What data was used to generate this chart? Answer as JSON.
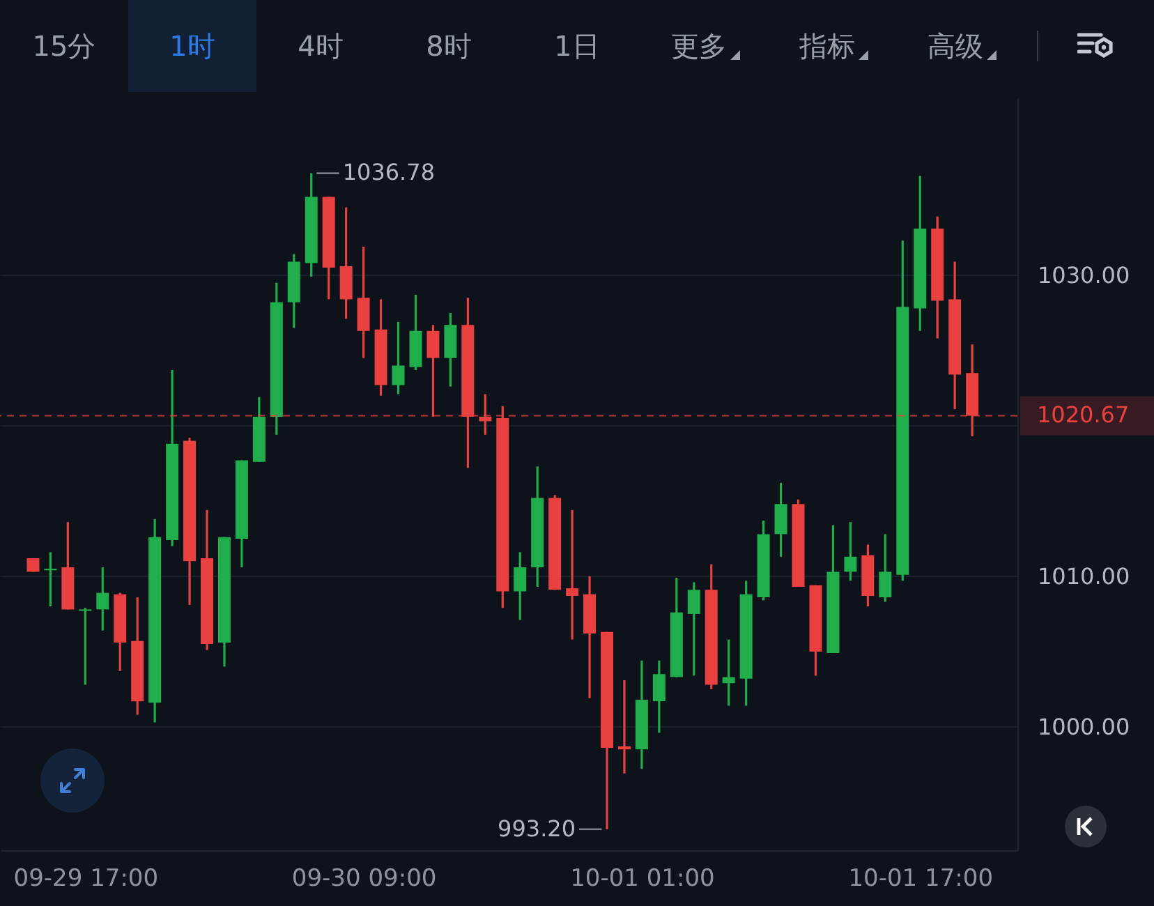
{
  "chart_data": {
    "type": "candlestick",
    "categories": [
      null,
      null,
      null,
      "09-29 17:00",
      null,
      null,
      null,
      null,
      null,
      null,
      null,
      null,
      null,
      null,
      null,
      null,
      null,
      null,
      null,
      "09-30 09:00",
      null,
      null,
      null,
      null,
      null,
      null,
      null,
      null,
      null,
      null,
      null,
      null,
      null,
      null,
      null,
      "10-01 01:00",
      null,
      null,
      null,
      null,
      null,
      null,
      null,
      null,
      null,
      null,
      null,
      null,
      null,
      null,
      null,
      "10-01 17:00",
      null,
      null,
      null
    ],
    "ohlc": [
      [
        1011.2,
        1011.2,
        1010.3,
        1010.3
      ],
      [
        1010.4,
        1011.6,
        1008.0,
        1010.5
      ],
      [
        1010.6,
        1013.6,
        1007.8,
        1007.8
      ],
      [
        1007.7,
        1007.9,
        1002.8,
        1007.8
      ],
      [
        1007.8,
        1010.6,
        1006.4,
        1008.9
      ],
      [
        1008.8,
        1008.9,
        1003.7,
        1005.6
      ],
      [
        1005.7,
        1008.6,
        1000.8,
        1001.7
      ],
      [
        1001.6,
        1013.8,
        1000.3,
        1012.6
      ],
      [
        1012.4,
        1023.7,
        1012.0,
        1018.8
      ],
      [
        1019.0,
        1019.2,
        1008.1,
        1011.0
      ],
      [
        1011.2,
        1014.4,
        1005.1,
        1005.5
      ],
      [
        1005.6,
        1012.6,
        1004.0,
        1012.6
      ],
      [
        1012.5,
        1017.7,
        1010.6,
        1017.7
      ],
      [
        1017.6,
        1021.9,
        1017.6,
        1020.6
      ],
      [
        1020.6,
        1029.5,
        1019.4,
        1028.2
      ],
      [
        1028.2,
        1031.4,
        1026.5,
        1030.9
      ],
      [
        1030.8,
        1036.78,
        1029.9,
        1035.2
      ],
      [
        1035.2,
        1035.2,
        1028.4,
        1030.5
      ],
      [
        1030.6,
        1034.5,
        1027.1,
        1028.4
      ],
      [
        1028.5,
        1031.9,
        1024.5,
        1026.3
      ],
      [
        1026.4,
        1028.4,
        1022.0,
        1022.7
      ],
      [
        1022.7,
        1026.9,
        1022.1,
        1024.0
      ],
      [
        1023.9,
        1028.7,
        1023.7,
        1026.3
      ],
      [
        1026.3,
        1026.7,
        1020.6,
        1024.5
      ],
      [
        1024.5,
        1027.5,
        1022.6,
        1026.7
      ],
      [
        1026.7,
        1028.5,
        1017.2,
        1020.6
      ],
      [
        1020.6,
        1022.1,
        1019.4,
        1020.3
      ],
      [
        1020.5,
        1021.3,
        1007.9,
        1009.0
      ],
      [
        1009.0,
        1011.6,
        1007.1,
        1010.6
      ],
      [
        1010.6,
        1017.3,
        1009.3,
        1015.2
      ],
      [
        1015.2,
        1015.4,
        1009.1,
        1009.1
      ],
      [
        1009.2,
        1014.4,
        1005.8,
        1008.7
      ],
      [
        1008.8,
        1010.0,
        1001.9,
        1006.2
      ],
      [
        1006.3,
        1006.3,
        993.2,
        998.6
      ],
      [
        998.7,
        1003.1,
        996.9,
        998.5
      ],
      [
        998.5,
        1004.4,
        997.2,
        1001.8
      ],
      [
        1001.7,
        1004.4,
        999.6,
        1003.5
      ],
      [
        1003.3,
        1009.9,
        1003.3,
        1007.6
      ],
      [
        1007.5,
        1009.6,
        1003.4,
        1009.1
      ],
      [
        1009.1,
        1010.8,
        1002.5,
        1002.8
      ],
      [
        1002.9,
        1005.8,
        1001.4,
        1003.3
      ],
      [
        1003.2,
        1009.7,
        1001.4,
        1008.8
      ],
      [
        1008.6,
        1013.7,
        1008.4,
        1012.8
      ],
      [
        1012.8,
        1016.2,
        1011.3,
        1014.8
      ],
      [
        1014.8,
        1015.1,
        1009.3,
        1009.3
      ],
      [
        1009.4,
        1009.4,
        1003.4,
        1005.0
      ],
      [
        1004.9,
        1013.4,
        1004.9,
        1010.3
      ],
      [
        1010.3,
        1013.6,
        1009.7,
        1011.3
      ],
      [
        1011.4,
        1012.1,
        1008.0,
        1008.7
      ],
      [
        1008.6,
        1012.8,
        1008.3,
        1010.3
      ],
      [
        1010.1,
        1032.3,
        1009.7,
        1027.9
      ],
      [
        1027.8,
        1036.6,
        1026.3,
        1033.1
      ],
      [
        1033.1,
        1033.9,
        1025.8,
        1028.3
      ],
      [
        1028.4,
        1030.9,
        1021.1,
        1023.4
      ],
      [
        1023.5,
        1025.4,
        1019.3,
        1020.67
      ]
    ],
    "colors": [
      "#e8413f",
      "#1fae4b",
      "#e8413f",
      "#1fae4b",
      "#1fae4b",
      "#e8413f",
      "#e8413f",
      "#1fae4b",
      "#1fae4b",
      "#e8413f",
      "#e8413f",
      "#1fae4b",
      "#1fae4b",
      "#1fae4b",
      "#1fae4b",
      "#1fae4b",
      "#1fae4b",
      "#e8413f",
      "#e8413f",
      "#e8413f",
      "#e8413f",
      "#1fae4b",
      "#1fae4b",
      "#e8413f",
      "#1fae4b",
      "#e8413f",
      "#e8413f",
      "#e8413f",
      "#1fae4b",
      "#1fae4b",
      "#e8413f",
      "#e8413f",
      "#e8413f",
      "#e8413f",
      "#e8413f",
      "#1fae4b",
      "#1fae4b",
      "#1fae4b",
      "#1fae4b",
      "#e8413f",
      "#1fae4b",
      "#1fae4b",
      "#1fae4b",
      "#1fae4b",
      "#e8413f",
      "#e8413f",
      "#1fae4b",
      "#1fae4b",
      "#e8413f",
      "#1fae4b",
      "#1fae4b",
      "#1fae4b",
      "#e8413f",
      "#e8413f",
      "#e8413f"
    ],
    "ylim": [
      991.8,
      1041.8
    ],
    "yticks": [
      {
        "value": 1000,
        "label": "1000.00"
      },
      {
        "value": 1010,
        "label": "1010.00"
      },
      {
        "value": 1020,
        "label": null
      },
      {
        "value": 1030,
        "label": "1030.00"
      }
    ],
    "grid": "y",
    "ref_lines": [
      {
        "axis": "y",
        "value": 1020.67,
        "label": "1020.67",
        "color": "#e8413f",
        "line_style": "dashed"
      }
    ],
    "annotations": [
      "15分",
      "1时",
      "4时",
      "8时",
      "1日",
      "更多",
      "指标",
      "高级",
      "1036.78",
      "993.20"
    ]
  }
}
